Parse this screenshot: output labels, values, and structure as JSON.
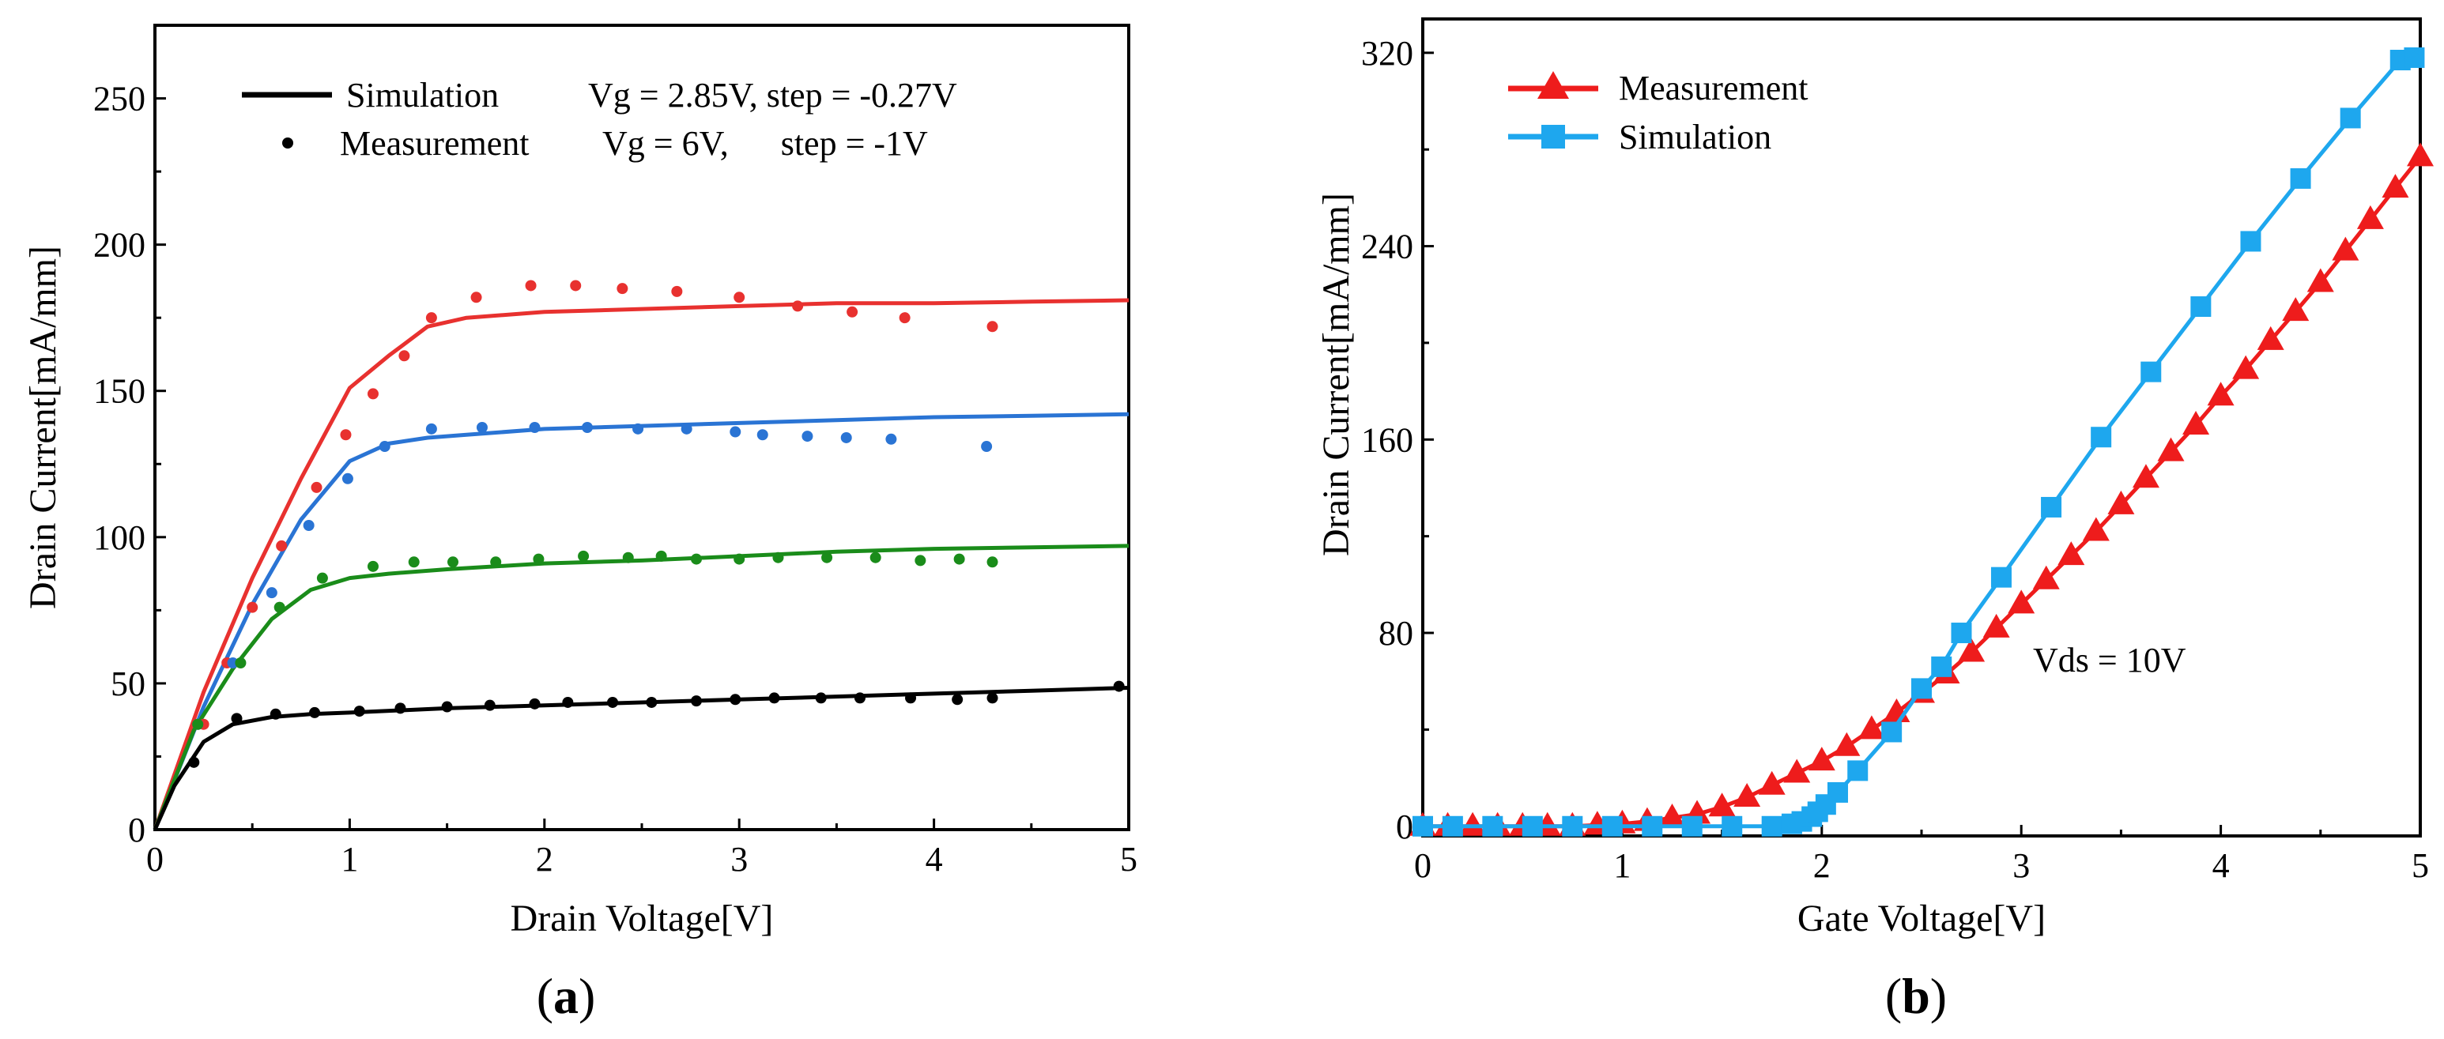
{
  "chart_data": [
    {
      "id": "a",
      "type": "line",
      "panel_label": "a",
      "xlabel": "Drain Voltage[V]",
      "ylabel": "Drain Current[mA/mm]",
      "xlim": [
        0,
        5
      ],
      "ylim": [
        0,
        275
      ],
      "xticks": [
        0,
        1,
        2,
        3,
        4,
        5
      ],
      "yticks": [
        0,
        50,
        100,
        150,
        200,
        250
      ],
      "legend": {
        "position": "top",
        "entries": [
          {
            "label": "Simulation",
            "style": "line",
            "note": "Vg = 2.85V, step = -0.27V"
          },
          {
            "label": "Measurement",
            "style": "dots",
            "note": "Vg = 6V,      step = -1V"
          }
        ]
      },
      "series": [
        {
          "name": "Simulation (top)",
          "style": "line",
          "color": "#e8312f",
          "x": [
            0,
            0.25,
            0.5,
            0.75,
            1.0,
            1.2,
            1.4,
            1.6,
            2.0,
            2.5,
            3.0,
            3.5,
            4.0,
            4.5,
            5.0
          ],
          "y": [
            0,
            47,
            86,
            120,
            151,
            162,
            172,
            175,
            177,
            178,
            179,
            180,
            180,
            180.5,
            181
          ]
        },
        {
          "name": "Simulation (2nd)",
          "style": "line",
          "color": "#2a74d4",
          "x": [
            0,
            0.25,
            0.5,
            0.75,
            1.0,
            1.2,
            1.4,
            1.6,
            2.0,
            2.5,
            3.0,
            3.5,
            4.0,
            4.5,
            5.0
          ],
          "y": [
            0,
            42,
            77,
            106,
            126,
            132,
            134,
            135,
            137,
            138,
            139,
            140,
            141,
            141.5,
            142
          ]
        },
        {
          "name": "Simulation (3rd)",
          "style": "line",
          "color": "#1a8c1a",
          "x": [
            0,
            0.2,
            0.4,
            0.6,
            0.8,
            1.0,
            1.2,
            1.5,
            2.0,
            2.5,
            3.0,
            3.5,
            4.0,
            4.5,
            5.0
          ],
          "y": [
            0,
            34,
            55,
            72,
            82,
            86,
            87.5,
            89,
            91,
            92,
            93.5,
            95,
            96,
            96.5,
            97
          ]
        },
        {
          "name": "Simulation (bottom)",
          "style": "line",
          "color": "#000000",
          "x": [
            0,
            0.1,
            0.25,
            0.4,
            0.6,
            0.8,
            1.0,
            1.5,
            2.0,
            2.5,
            3.0,
            3.5,
            4.0,
            4.5,
            5.0
          ],
          "y": [
            0,
            15,
            30,
            36,
            38.5,
            39.5,
            40,
            41.5,
            42.5,
            43.5,
            44.5,
            45.5,
            46.5,
            47.5,
            48.5
          ]
        },
        {
          "name": "Measurement (top)",
          "style": "dots",
          "color": "#e8312f",
          "x": [
            0.25,
            0.37,
            0.5,
            0.65,
            0.83,
            0.98,
            1.12,
            1.28,
            1.42,
            1.65,
            1.93,
            2.16,
            2.4,
            2.68,
            3.0,
            3.3,
            3.58,
            3.85,
            4.3
          ],
          "y": [
            36,
            57,
            76,
            97,
            117,
            135,
            149,
            162,
            175,
            182,
            186,
            186,
            185,
            184,
            182,
            179,
            177,
            175,
            172
          ]
        },
        {
          "name": "Measurement (2nd)",
          "style": "dots",
          "color": "#2a74d4",
          "x": [
            0.22,
            0.4,
            0.6,
            0.79,
            0.99,
            1.18,
            1.42,
            1.68,
            1.95,
            2.22,
            2.48,
            2.73,
            2.98,
            3.12,
            3.35,
            3.55,
            3.78,
            4.27
          ],
          "y": [
            36,
            57,
            81,
            104,
            120,
            131,
            137,
            137.5,
            137.5,
            137.5,
            137,
            137,
            136,
            135,
            134.5,
            134,
            133.5,
            131
          ]
        },
        {
          "name": "Measurement (3rd)",
          "style": "dots",
          "color": "#1a8c1a",
          "x": [
            0.22,
            0.44,
            0.64,
            0.86,
            1.12,
            1.33,
            1.53,
            1.75,
            1.97,
            2.2,
            2.43,
            2.6,
            2.78,
            3.0,
            3.2,
            3.45,
            3.7,
            3.93,
            4.13,
            4.3
          ],
          "y": [
            36,
            57,
            76,
            86,
            90,
            91.5,
            91.5,
            91.5,
            92.5,
            93.5,
            93,
            93.5,
            92.5,
            92.5,
            93,
            93,
            93,
            92,
            92.5,
            91.5
          ]
        },
        {
          "name": "Measurement (bottom)",
          "style": "dots",
          "color": "#000000",
          "x": [
            0.2,
            0.42,
            0.62,
            0.82,
            1.05,
            1.26,
            1.5,
            1.72,
            1.95,
            2.12,
            2.35,
            2.55,
            2.78,
            2.98,
            3.18,
            3.42,
            3.62,
            3.88,
            4.12,
            4.3,
            4.95
          ],
          "y": [
            23,
            38,
            39.5,
            40,
            40.5,
            41.5,
            42,
            42.5,
            43,
            43.5,
            43.5,
            43.5,
            44,
            44.5,
            45,
            45,
            45,
            45,
            44.5,
            45,
            49
          ]
        }
      ]
    },
    {
      "id": "b",
      "type": "line",
      "panel_label": "b",
      "xlabel": "Gate Voltage[V]",
      "ylabel": "Drain Current[mA/mm]",
      "xlim": [
        0,
        5
      ],
      "ylim": [
        -4,
        334
      ],
      "xticks": [
        0,
        1,
        2,
        3,
        4,
        5
      ],
      "yticks": [
        0,
        80,
        160,
        240,
        320
      ],
      "annotation": "Vds = 10V",
      "legend": {
        "position": "top-left",
        "entries": [
          {
            "label": "Measurement",
            "style": "triangle-line",
            "color": "#ee1c1c"
          },
          {
            "label": "Simulation",
            "style": "square-line",
            "color": "#1ea7ee"
          }
        ]
      },
      "series": [
        {
          "name": "Measurement",
          "marker": "triangle",
          "color": "#ee1c1c",
          "x": [
            0,
            0.125,
            0.25,
            0.375,
            0.5,
            0.625,
            0.75,
            0.875,
            1.0,
            1.125,
            1.25,
            1.375,
            1.5,
            1.625,
            1.75,
            1.875,
            2.0,
            2.125,
            2.25,
            2.375,
            2.5,
            2.625,
            2.75,
            2.875,
            3.0,
            3.125,
            3.25,
            3.375,
            3.5,
            3.625,
            3.75,
            3.875,
            4.0,
            4.125,
            4.25,
            4.375,
            4.5,
            4.625,
            4.75,
            4.875,
            5.0
          ],
          "y": [
            0,
            0,
            0,
            0,
            0,
            0,
            0,
            0.5,
            1,
            2,
            3.5,
            5,
            8,
            12,
            17,
            22,
            27,
            33,
            40,
            47,
            55,
            63,
            72,
            82,
            92,
            102,
            112,
            122,
            133,
            144,
            155,
            166,
            178,
            189,
            201,
            213,
            225,
            238,
            251,
            264,
            277
          ]
        },
        {
          "name": "Simulation",
          "marker": "square",
          "color": "#1ea7ee",
          "marker_x": [
            0,
            0.15,
            0.35,
            0.55,
            0.75,
            0.95,
            1.15,
            1.35,
            1.55,
            1.75,
            1.85,
            1.9,
            1.95,
            1.98,
            2.02,
            2.08,
            2.18,
            2.35,
            2.5,
            2.6,
            2.7,
            2.9,
            3.15,
            3.4,
            3.65,
            3.9,
            4.15,
            4.4,
            4.65,
            4.9,
            4.97
          ],
          "marker_y": [
            0,
            0,
            0,
            0,
            0,
            0,
            0,
            0,
            0,
            0,
            1,
            2,
            4,
            6,
            9,
            14,
            23,
            39,
            57,
            66,
            80,
            103,
            132,
            161,
            188,
            215,
            242,
            268,
            293,
            317,
            318
          ]
        }
      ]
    }
  ]
}
